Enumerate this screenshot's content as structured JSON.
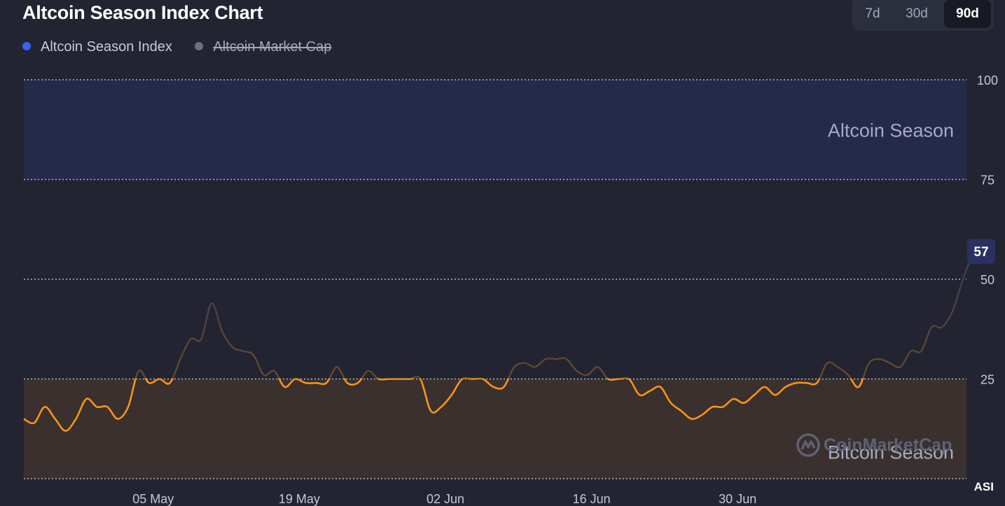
{
  "header": {
    "title": "Altcoin Season Index Chart",
    "ranges": [
      "7d",
      "30d",
      "90d"
    ],
    "active_range": "90d"
  },
  "legend": [
    {
      "label": "Altcoin Season Index",
      "color": "#3861fb",
      "enabled": true
    },
    {
      "label": "Altcoin Market Cap",
      "color": "#6b6f80",
      "enabled": false
    }
  ],
  "watermark": {
    "text": "CoinMarketCap"
  },
  "colors": {
    "background": "#222531",
    "altcoin_zone": "#262a4a",
    "bitcoin_zone": "#3a302e",
    "line": "#f7931a",
    "badge": "#2a3160",
    "grid": "#cfd3e0"
  },
  "chart_data": {
    "type": "line",
    "title": "Altcoin Season Index Chart",
    "y_axis": {
      "min": 0,
      "max": 100,
      "ticks": [
        100,
        75,
        50,
        25
      ],
      "position": "right",
      "label": "ASI"
    },
    "x_axis": {
      "start": "2025-04-23",
      "end": "2025-07-21",
      "ticks": [
        {
          "date": "2025-05-05",
          "label": "05 May"
        },
        {
          "date": "2025-05-19",
          "label": "19 May"
        },
        {
          "date": "2025-06-02",
          "label": "02 Jun"
        },
        {
          "date": "2025-06-16",
          "label": "16 Jun"
        },
        {
          "date": "2025-06-30",
          "label": "30 Jun"
        }
      ]
    },
    "zones": [
      {
        "label": "Altcoin Season",
        "from": 75,
        "to": 100
      },
      {
        "label": "Bitcoin Season",
        "from": 0,
        "to": 25
      }
    ],
    "current_value": 57,
    "grid": true,
    "series": [
      {
        "name": "Altcoin Season Index",
        "points": [
          [
            "2025-04-23",
            15
          ],
          [
            "2025-04-24",
            14
          ],
          [
            "2025-04-25",
            18
          ],
          [
            "2025-04-26",
            15
          ],
          [
            "2025-04-27",
            12
          ],
          [
            "2025-04-28",
            15
          ],
          [
            "2025-04-29",
            20
          ],
          [
            "2025-04-30",
            18
          ],
          [
            "2025-05-01",
            18
          ],
          [
            "2025-05-02",
            15
          ],
          [
            "2025-05-03",
            18
          ],
          [
            "2025-05-04",
            27
          ],
          [
            "2025-05-05",
            24
          ],
          [
            "2025-05-06",
            25
          ],
          [
            "2025-05-07",
            24
          ],
          [
            "2025-05-08",
            30
          ],
          [
            "2025-05-09",
            35
          ],
          [
            "2025-05-10",
            35
          ],
          [
            "2025-05-11",
            44
          ],
          [
            "2025-05-12",
            37
          ],
          [
            "2025-05-13",
            33
          ],
          [
            "2025-05-14",
            32
          ],
          [
            "2025-05-15",
            31
          ],
          [
            "2025-05-16",
            26
          ],
          [
            "2025-05-17",
            27
          ],
          [
            "2025-05-18",
            23
          ],
          [
            "2025-05-19",
            25
          ],
          [
            "2025-05-20",
            24
          ],
          [
            "2025-05-21",
            24
          ],
          [
            "2025-05-22",
            24
          ],
          [
            "2025-05-23",
            28
          ],
          [
            "2025-05-24",
            24
          ],
          [
            "2025-05-25",
            24
          ],
          [
            "2025-05-26",
            27
          ],
          [
            "2025-05-27",
            25
          ],
          [
            "2025-05-28",
            25
          ],
          [
            "2025-05-29",
            25
          ],
          [
            "2025-05-30",
            25
          ],
          [
            "2025-05-31",
            25
          ],
          [
            "2025-06-01",
            17
          ],
          [
            "2025-06-02",
            18
          ],
          [
            "2025-06-03",
            21
          ],
          [
            "2025-06-04",
            25
          ],
          [
            "2025-06-05",
            25
          ],
          [
            "2025-06-06",
            25
          ],
          [
            "2025-06-07",
            23
          ],
          [
            "2025-06-08",
            23
          ],
          [
            "2025-06-09",
            28
          ],
          [
            "2025-06-10",
            29
          ],
          [
            "2025-06-11",
            28
          ],
          [
            "2025-06-12",
            30
          ],
          [
            "2025-06-13",
            30
          ],
          [
            "2025-06-14",
            30
          ],
          [
            "2025-06-15",
            27
          ],
          [
            "2025-06-16",
            26
          ],
          [
            "2025-06-17",
            28
          ],
          [
            "2025-06-18",
            25
          ],
          [
            "2025-06-19",
            25
          ],
          [
            "2025-06-20",
            25
          ],
          [
            "2025-06-21",
            21
          ],
          [
            "2025-06-22",
            22
          ],
          [
            "2025-06-23",
            23
          ],
          [
            "2025-06-24",
            19
          ],
          [
            "2025-06-25",
            17
          ],
          [
            "2025-06-26",
            15
          ],
          [
            "2025-06-27",
            16
          ],
          [
            "2025-06-28",
            18
          ],
          [
            "2025-06-29",
            18
          ],
          [
            "2025-06-30",
            20
          ],
          [
            "2025-07-01",
            19
          ],
          [
            "2025-07-02",
            21
          ],
          [
            "2025-07-03",
            23
          ],
          [
            "2025-07-04",
            21
          ],
          [
            "2025-07-05",
            23
          ],
          [
            "2025-07-06",
            24
          ],
          [
            "2025-07-07",
            24
          ],
          [
            "2025-07-08",
            24
          ],
          [
            "2025-07-09",
            29
          ],
          [
            "2025-07-10",
            28
          ],
          [
            "2025-07-11",
            26
          ],
          [
            "2025-07-12",
            23
          ],
          [
            "2025-07-13",
            29
          ],
          [
            "2025-07-14",
            30
          ],
          [
            "2025-07-15",
            29
          ],
          [
            "2025-07-16",
            28
          ],
          [
            "2025-07-17",
            32
          ],
          [
            "2025-07-18",
            32
          ],
          [
            "2025-07-19",
            38
          ],
          [
            "2025-07-20",
            38
          ],
          [
            "2025-07-21",
            42
          ],
          [
            "2025-07-22",
            50
          ],
          [
            "2025-07-23",
            57
          ]
        ]
      }
    ]
  }
}
